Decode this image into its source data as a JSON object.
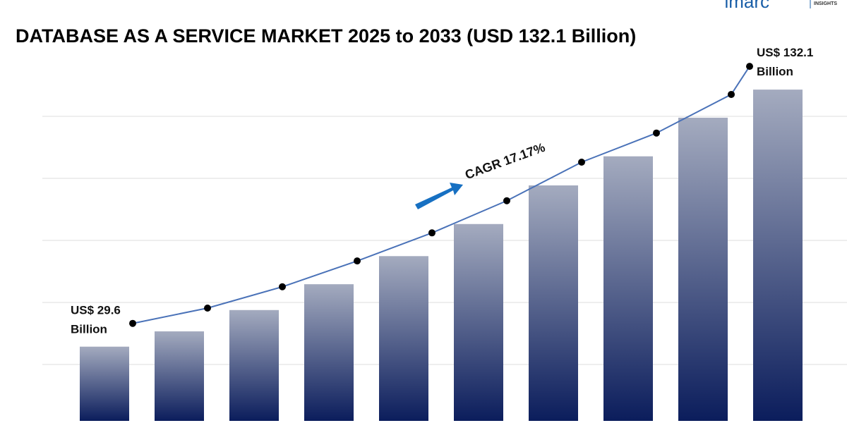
{
  "chart_data": {
    "type": "bar",
    "title": "DATABASE AS A SERVICE MARKET 2025 to 2033 (USD 132.1 Billion)",
    "logo": "imarc",
    "logo_tagline": "INSIGHTS",
    "annotation": "CAGR 17.17%",
    "categories": [
      null,
      null,
      null,
      null,
      null,
      null,
      null,
      null,
      null,
      null
    ],
    "values": [
      29.6,
      35.7,
      44.2,
      54.5,
      65.7,
      78.5,
      93.9,
      105.5,
      120.9,
      132.1
    ],
    "value_labels": [
      "US$ 29.6 Billion",
      null,
      null,
      null,
      null,
      null,
      null,
      null,
      null,
      "US$ 132.1 Billion"
    ],
    "color": "#0b1d5c",
    "line_color": "#4a72b8",
    "ylim": [
      0,
      140
    ],
    "grid": true
  }
}
